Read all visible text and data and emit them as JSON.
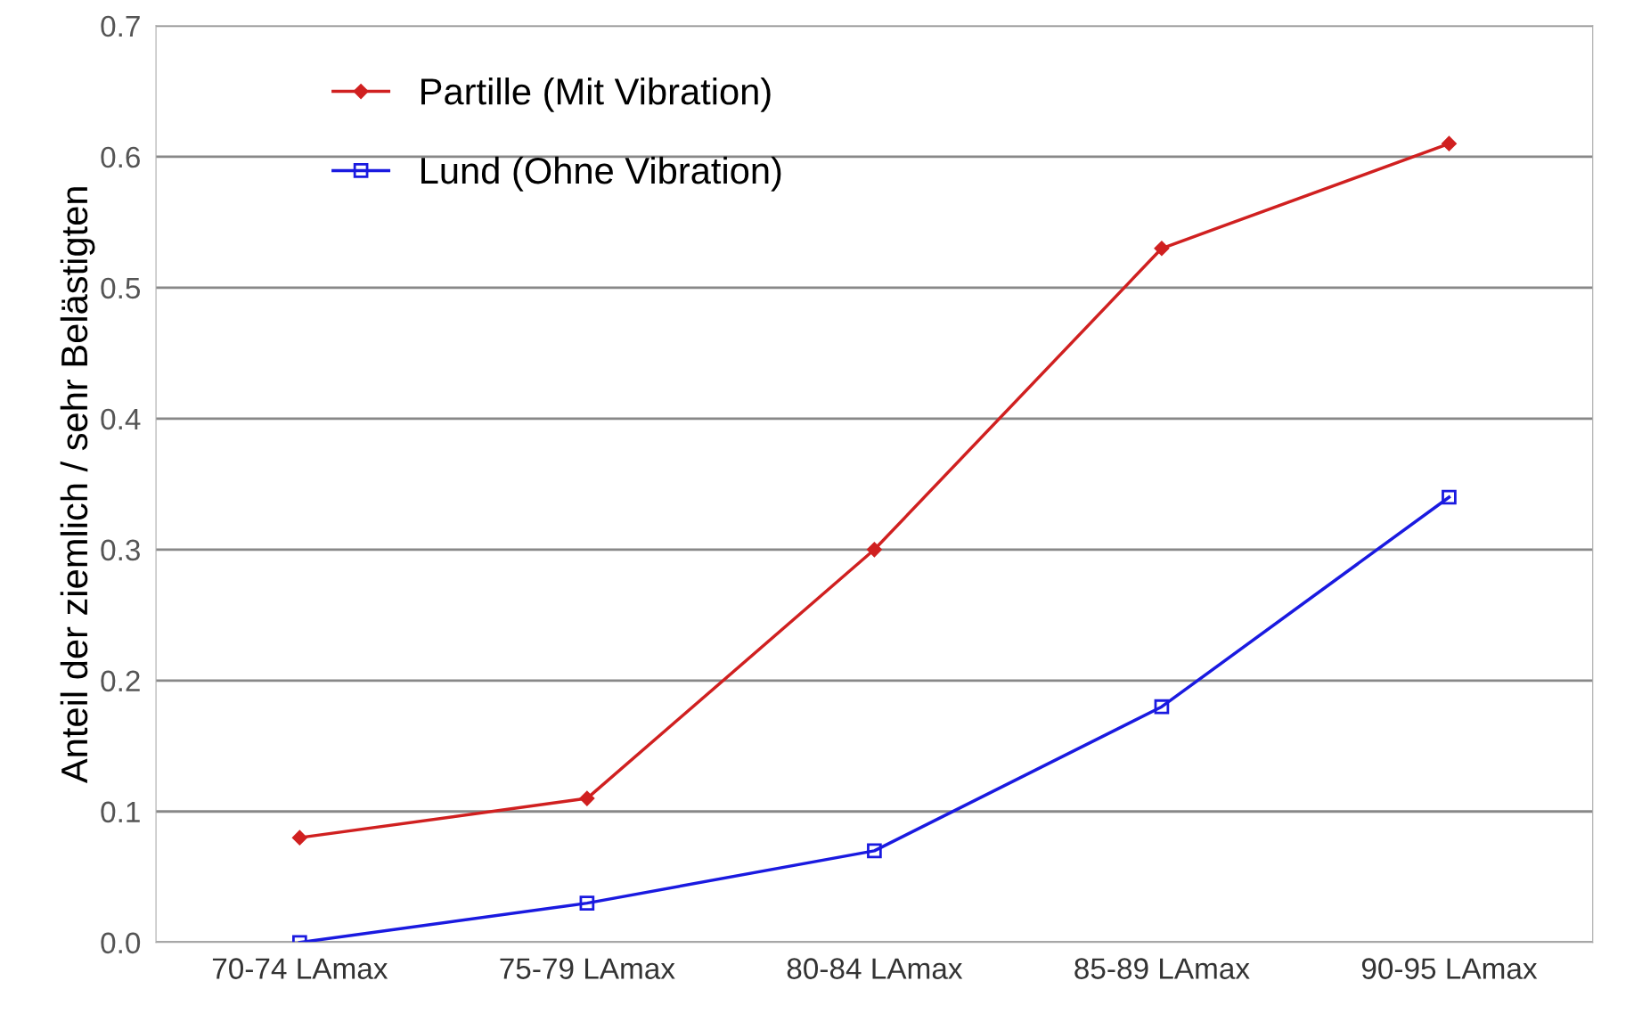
{
  "chart_data": {
    "type": "line",
    "ylabel": "Anteil der ziemlich / sehr Belästigten",
    "categories": [
      "70-74 LAmax",
      "75-79 LAmax",
      "80-84 LAmax",
      "85-89 LAmax",
      "90-95 LAmax"
    ],
    "series": [
      {
        "name": "Partille (Mit Vibration)",
        "color": "#d02020",
        "marker": "diamond",
        "values": [
          0.08,
          0.11,
          0.3,
          0.53,
          0.61
        ]
      },
      {
        "name": "Lund (Ohne Vibration)",
        "color": "#1a1ae0",
        "marker": "square",
        "values": [
          0.0,
          0.03,
          0.07,
          0.18,
          0.34
        ]
      }
    ],
    "ylim": [
      0,
      0.7
    ],
    "yticks": [
      {
        "value": 0,
        "label": "0.0"
      },
      0.1,
      0.2,
      0.3,
      0.4,
      0.5,
      0.6,
      0.7
    ],
    "grid": "y",
    "legend": "top left",
    "line_style": "solid"
  }
}
